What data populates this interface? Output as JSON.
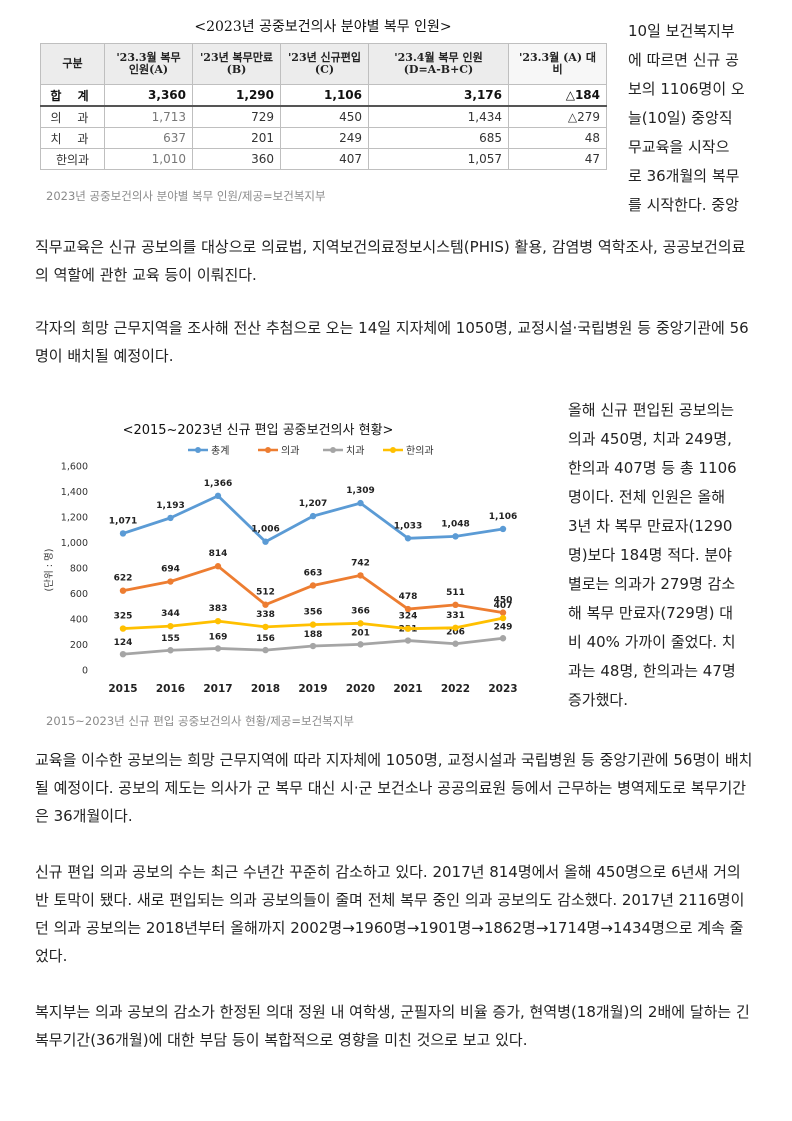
{
  "table_figure": {
    "title": "<2023년 공중보건의사 분야별 복무 인원>",
    "headers": [
      "구분",
      "'23.3월 복무 인원(A)",
      "'23년 복무만료(B)",
      "'23년 신규편입(C)",
      "'23.4월 복무 인원 (D=A-B+C)",
      "'23.3월 (A) 대비"
    ],
    "rows": [
      {
        "label": "합 계",
        "cells": [
          "3,360",
          "1,290",
          "1,106",
          "3,176",
          "△184"
        ]
      },
      {
        "label": "의 과",
        "cells": [
          "1,713",
          "729",
          "450",
          "1,434",
          "△279"
        ]
      },
      {
        "label": "치 과",
        "cells": [
          "637",
          "201",
          "249",
          "685",
          "48"
        ]
      },
      {
        "label": "한의과",
        "cells": [
          "1,010",
          "360",
          "407",
          "1,057",
          "47"
        ]
      }
    ],
    "caption": "2023년 공중보건의사 분야별 복무 인원/제공=보건복지부"
  },
  "side_text_1": [
    "10일 보건복지부",
    "에 따르면 신규 공",
    "보의 1106명이 오",
    "늘(10일) 중앙직",
    "무교육을 시작으",
    "로 36개월의 복무",
    "를 시작한다. 중앙"
  ],
  "para_1": "직무교육은 신규 공보의를 대상으로 의료법, 지역보건의료정보시스템(PHIS) 활용, 감염병 역학조사, 공공보건의료의 역할에 관한 교육 등이 이뤄진다.",
  "para_2": "각자의 희망 근무지역을 조사해 전산 추첨으로 오는 14일 지자체에 1050명, 교정시설·국립병원 등 중앙기관에 56명이 배치될 예정이다.",
  "chart_caption": "2015~2023년 신규 편입 공중보건의사 현황/제공=보건복지부",
  "side_text_2": [
    "올해 신규 편입된 공보의는",
    "의과 450명, 치과 249명,",
    "한의과 407명 등 총 1106",
    "명이다. 전체 인원은 올해",
    "3년 차 복무 만료자(1290",
    "명)보다 184명 적다. 분야",
    "별로는 의과가 279명 감소",
    "해 복무 만료자(729명) 대",
    "비 40% 가까이 줄었다. 치",
    "과는 48명, 한의과는 47명",
    "증가했다."
  ],
  "para_3": "교육을 이수한 공보의는 희망 근무지역에 따라 지자체에 1050명, 교정시설과 국립병원 등 중앙기관에 56명이 배치될 예정이다. 공보의 제도는 의사가 군 복무 대신 시·군 보건소나 공공의료원 등에서 근무하는 병역제도로 복무기간은 36개월이다.",
  "para_4": "신규 편입 의과 공보의 수는 최근 수년간 꾸준히 감소하고 있다. 2017년 814명에서 올해 450명으로 6년새 거의 반 토막이 됐다. 새로 편입되는 의과 공보의들이 줄며 전체 복무 중인 의과 공보의도 감소했다. 2017년 2116명이던 의과 공보의는 2018년부터 올해까지 2002명→1960명→1901명→1862명→1714명→1434명으로 계속 줄었다.",
  "para_5": "복지부는 의과 공보의 감소가 한정된 의대 정원 내 여학생, 군필자의 비율 증가, 현역병(18개월)의 2배에 달하는 긴 복무기간(36개월)에 대한 부담 등이 복합적으로 영향을 미친 것으로 보고 있다.",
  "chart_data": {
    "type": "line",
    "title": "<2015~2023년 신규 편입 공중보건의사 현황>",
    "ylabel": "(단위 : 명)",
    "xlabel": "",
    "x": [
      "2015",
      "2016",
      "2017",
      "2018",
      "2019",
      "2020",
      "2021",
      "2022",
      "2023"
    ],
    "ylim": [
      0,
      1600
    ],
    "yticks": [
      "0",
      "200",
      "400",
      "600",
      "800",
      "1,000",
      "1,200",
      "1,400",
      "1,600"
    ],
    "legend_position": "top",
    "grid": false,
    "series": [
      {
        "name": "총계",
        "color": "#5b9bd5",
        "values": [
          1071,
          1193,
          1366,
          1006,
          1207,
          1309,
          1033,
          1048,
          1106
        ],
        "labels": [
          "1,071",
          "1,193",
          "1,366",
          "1,006",
          "1,207",
          "1,309",
          "1,033",
          "1,048",
          "1,106"
        ]
      },
      {
        "name": "의과",
        "color": "#ed7d31",
        "values": [
          622,
          694,
          814,
          512,
          663,
          742,
          478,
          511,
          450
        ],
        "labels": [
          "622",
          "694",
          "814",
          "512",
          "663",
          "742",
          "478",
          "511",
          "450"
        ]
      },
      {
        "name": "치과",
        "color": "#a5a5a5",
        "values": [
          124,
          155,
          169,
          156,
          188,
          201,
          231,
          206,
          249
        ],
        "labels": [
          "124",
          "155",
          "169",
          "156",
          "188",
          "201",
          "231",
          "206",
          "249"
        ]
      },
      {
        "name": "한의과",
        "color": "#ffc000",
        "values": [
          325,
          344,
          383,
          338,
          356,
          366,
          324,
          331,
          407
        ],
        "labels": [
          "325",
          "344",
          "383",
          "338",
          "356",
          "366",
          "324",
          "331",
          "407"
        ]
      }
    ]
  }
}
